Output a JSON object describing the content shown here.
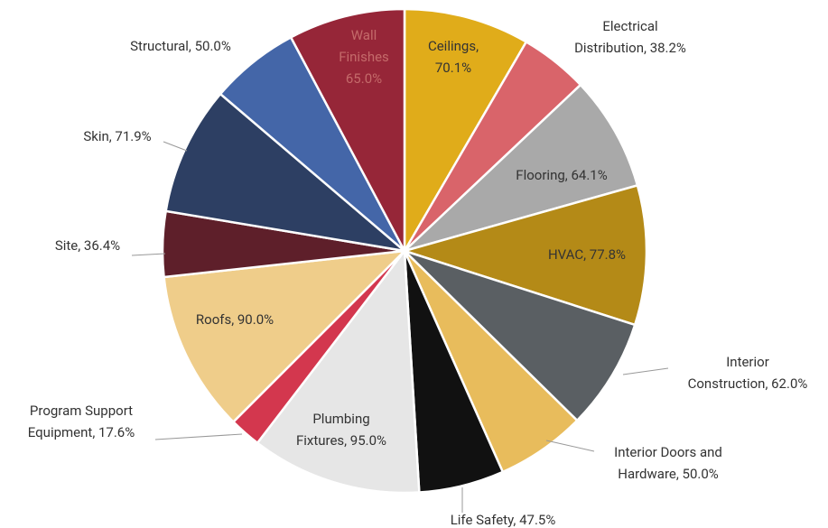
{
  "chart_data": {
    "type": "pie",
    "values": [
      70.1,
      38.2,
      64.1,
      77.8,
      62.0,
      50.0,
      47.5,
      95.0,
      17.6,
      90.0,
      36.4,
      71.9,
      50.0,
      65.0
    ],
    "value_labels": [
      "Ceilings,\n70.1%",
      "Electrical\nDistribution, 38.2%",
      "Flooring, 64.1%",
      "HVAC, 77.8%",
      "Interior\nConstruction, 62.0%",
      "Interior Doors and\nHardware, 50.0%",
      "Life Safety, 47.5%",
      "Plumbing\nFixtures, 95.0%",
      "Program Support\nEquipment, 17.6%",
      "Roofs, 90.0%",
      "Site, 36.4%",
      "Skin, 71.9%",
      "Structural, 50.0%",
      "Wall\nFinishes\n65.0%"
    ],
    "colors": [
      "#e0ac1a",
      "#d9646a",
      "#a9a9a9",
      "#b48a17",
      "#5a5f63",
      "#e8bc5c",
      "#111111",
      "#e6e6e6",
      "#d3374e",
      "#efcd8a",
      "#5e1f2a",
      "#2d3f63",
      "#4466a8",
      "#962638"
    ]
  }
}
